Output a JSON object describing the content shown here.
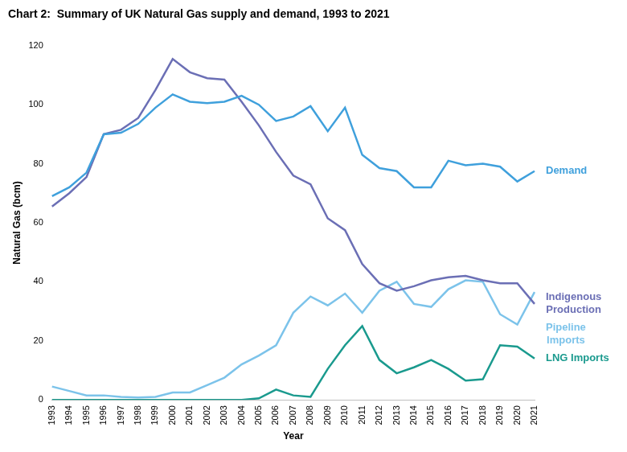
{
  "chart_data": {
    "type": "line",
    "title": "Chart 2:  Summary of UK Natural Gas supply and demand, 1993 to 2021",
    "x_label": "Year",
    "y_label": "Natural Gas (bcm)",
    "categories": [
      "1993",
      "1994",
      "1995",
      "1996",
      "1997",
      "1998",
      "1999",
      "2000",
      "2001",
      "2002",
      "2003",
      "2004",
      "2005",
      "2006",
      "2007",
      "2008",
      "2009",
      "2010",
      "2011",
      "2012",
      "2013",
      "2014",
      "2015",
      "2016",
      "2017",
      "2018",
      "2019",
      "2020",
      "2021"
    ],
    "series": [
      {
        "name": "Demand",
        "color": "#3fa0dc",
        "values": [
          69,
          72,
          77,
          90,
          90.5,
          93.5,
          99,
          103.5,
          101,
          100.5,
          101,
          103,
          100,
          94.5,
          96,
          99.5,
          91,
          99,
          83,
          78.5,
          77.5,
          72,
          72,
          81,
          79.5,
          80,
          79,
          74,
          77.5
        ]
      },
      {
        "name": "Indigenous Production",
        "color": "#6b6fb5",
        "values": [
          65.5,
          70,
          75.5,
          90,
          91.5,
          95.5,
          105,
          115.5,
          111,
          109,
          108.5,
          101,
          93,
          84,
          76,
          73,
          61.5,
          57.5,
          46,
          39.5,
          37,
          38.5,
          40.5,
          41.5,
          42,
          40.5,
          39.5,
          39.5,
          32.5
        ]
      },
      {
        "name": "Pipeline Imports",
        "color": "#7cc3ea",
        "values": [
          4.5,
          3,
          1.5,
          1.5,
          1,
          0.8,
          1,
          2.5,
          2.5,
          5,
          7.5,
          12,
          15,
          18.5,
          29.5,
          35,
          32,
          36,
          29.5,
          37,
          40,
          32.5,
          31.5,
          37.5,
          40.5,
          40,
          29,
          25.5,
          36.5
        ]
      },
      {
        "name": "LNG Imports",
        "color": "#1a9a8e",
        "values": [
          0,
          0,
          0,
          0,
          0,
          0,
          0,
          0,
          0,
          0,
          0,
          0,
          0.5,
          3.5,
          1.5,
          1,
          10.5,
          18.5,
          25,
          13.5,
          9,
          11,
          13.5,
          10.5,
          6.5,
          7,
          18.5,
          18,
          14
        ]
      }
    ],
    "ylim": [
      0,
      120
    ],
    "yticks": [
      0,
      20,
      40,
      60,
      80,
      100,
      120
    ],
    "grid": false
  }
}
